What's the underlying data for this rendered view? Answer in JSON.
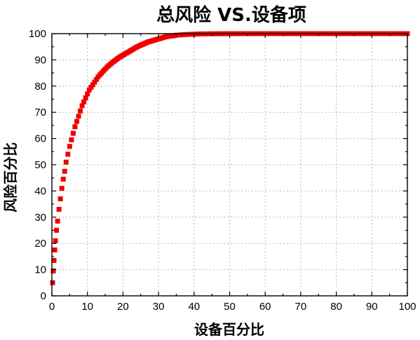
{
  "chart_data": {
    "type": "scatter",
    "title": "总风险 VS.设备项",
    "xlabel": "设备百分比",
    "ylabel": "风险百分比",
    "xlim": [
      0,
      100
    ],
    "ylim": [
      0,
      100
    ],
    "x_ticks": [
      "0",
      "10",
      "20",
      "30",
      "40",
      "50",
      "60",
      "70",
      "80",
      "90",
      "100"
    ],
    "y_ticks": [
      "0",
      "10",
      "20",
      "30",
      "40",
      "50",
      "60",
      "70",
      "80",
      "90",
      "100"
    ],
    "grid": true,
    "marker_color": "#ee0000",
    "series": [
      {
        "marker": "square",
        "x": [
          0.2,
          0.4,
          0.6,
          0.8,
          1.0,
          1.3,
          1.6,
          2.0,
          2.4,
          2.8,
          3.2,
          3.6,
          4.0,
          4.5,
          5.0,
          5.5,
          6.0,
          6.5,
          7.0,
          7.5,
          8.0,
          8.5,
          9.0,
          9.5,
          10.0,
          10.5,
          11.0,
          11.5,
          12.0,
          12.5,
          13.0,
          13.5,
          14.0,
          14.5,
          15.0,
          15.5,
          16.0,
          16.5,
          17.0,
          17.5,
          18.0,
          18.5,
          19.0,
          19.5,
          20.0,
          20.5,
          21.0,
          21.5,
          22.0,
          22.5,
          23.0,
          23.5,
          24.0,
          24.5,
          25.0,
          25.5,
          26.0,
          26.5,
          27.0,
          27.5,
          28.0,
          28.5,
          29.0,
          29.5,
          30.0,
          30.5,
          31.0,
          31.5,
          32.0,
          32.5,
          33.0,
          33.5,
          34.0,
          34.5,
          35.0,
          36.0,
          37.0,
          38.0,
          39.0,
          40.0,
          41.0,
          42.0,
          43.0,
          44.0,
          45.0,
          46.0,
          47.0,
          48.0,
          49.0,
          50.0,
          51.0,
          52.0,
          53.0,
          54.0,
          55.0,
          56.0,
          57.0,
          58.0,
          59.0,
          60.0,
          61.0,
          62.0,
          63.0,
          64.0,
          65.0,
          66.0,
          67.0,
          68.0,
          69.0,
          70.0,
          71.0,
          72.0,
          73.0,
          74.0,
          75.0,
          76.0,
          77.0,
          78.0,
          79.0,
          80.0,
          81.0,
          82.0,
          83.0,
          84.0,
          85.0,
          86.0,
          87.0,
          88.0,
          89.0,
          90.0,
          91.0,
          92.0,
          93.0,
          94.0,
          95.0,
          96.0,
          97.0,
          98.0,
          99.0,
          100.0
        ],
        "y": [
          5.0,
          9.5,
          13.5,
          17.5,
          21.0,
          25.0,
          28.5,
          33.0,
          37.0,
          41.0,
          44.5,
          47.5,
          51.0,
          54.0,
          57.0,
          59.5,
          62.0,
          64.5,
          66.5,
          68.5,
          70.5,
          72.5,
          74.0,
          75.5,
          77.0,
          78.5,
          79.5,
          80.5,
          81.5,
          82.5,
          83.5,
          84.3,
          85.0,
          85.8,
          86.5,
          87.2,
          87.8,
          88.4,
          89.0,
          89.5,
          90.0,
          90.5,
          91.0,
          91.4,
          91.8,
          92.2,
          92.6,
          93.0,
          93.4,
          93.8,
          94.2,
          94.6,
          95.0,
          95.3,
          95.6,
          95.9,
          96.2,
          96.5,
          96.8,
          97.0,
          97.2,
          97.4,
          97.6,
          97.8,
          98.0,
          98.2,
          98.4,
          98.6,
          98.8,
          98.9,
          99.0,
          99.1,
          99.2,
          99.3,
          99.4,
          99.5,
          99.6,
          99.7,
          99.75,
          99.8,
          99.85,
          99.9,
          99.9,
          99.92,
          99.94,
          99.95,
          99.96,
          99.97,
          99.97,
          99.98,
          99.98,
          99.98,
          99.99,
          99.99,
          99.99,
          99.99,
          99.99,
          99.99,
          99.99,
          100,
          100,
          100,
          100,
          100,
          100,
          100,
          100,
          100,
          100,
          100,
          100,
          100,
          100,
          100,
          100,
          100,
          100,
          100,
          100,
          100,
          100,
          100,
          100,
          100,
          100,
          100,
          100,
          100,
          100,
          100,
          100,
          100,
          100,
          100,
          100,
          100,
          100,
          100,
          100,
          100
        ]
      }
    ]
  }
}
